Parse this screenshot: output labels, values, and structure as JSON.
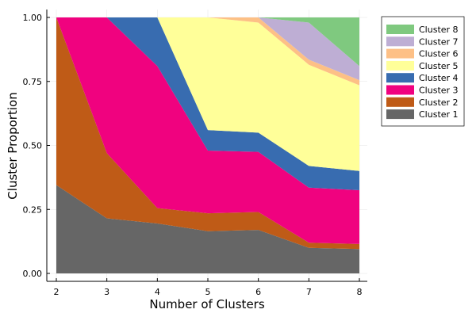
{
  "chart_data": {
    "type": "area",
    "stacked": true,
    "xlabel": "Number of Clusters",
    "ylabel": "Cluster Proportion",
    "x": [
      2,
      3,
      4,
      5,
      6,
      7,
      8
    ],
    "xlim": [
      2,
      8
    ],
    "ylim": [
      0,
      1
    ],
    "yticks": [
      "0.00",
      "0.25",
      "0.50",
      "0.75",
      "1.00"
    ],
    "xticks": [
      "2",
      "3",
      "4",
      "5",
      "6",
      "7",
      "8"
    ],
    "grid": true,
    "legend_position": "top-right",
    "series": [
      {
        "name": "Cluster 1",
        "color": "#666666",
        "values": [
          0.345,
          0.215,
          0.195,
          0.165,
          0.17,
          0.1,
          0.095
        ]
      },
      {
        "name": "Cluster 2",
        "color": "#bf5b17",
        "values": [
          0.655,
          0.255,
          0.06,
          0.07,
          0.07,
          0.02,
          0.02
        ]
      },
      {
        "name": "Cluster 3",
        "color": "#f0027f",
        "values": [
          0.0,
          0.53,
          0.555,
          0.245,
          0.235,
          0.215,
          0.21
        ]
      },
      {
        "name": "Cluster 4",
        "color": "#386cb0",
        "values": [
          0.0,
          0.0,
          0.19,
          0.08,
          0.075,
          0.085,
          0.075
        ]
      },
      {
        "name": "Cluster 5",
        "color": "#ffff99",
        "values": [
          0.0,
          0.0,
          0.0,
          0.44,
          0.43,
          0.395,
          0.335
        ]
      },
      {
        "name": "Cluster 6",
        "color": "#fdc086",
        "values": [
          0.0,
          0.0,
          0.0,
          0.0,
          0.02,
          0.02,
          0.02
        ]
      },
      {
        "name": "Cluster 7",
        "color": "#beaed4",
        "values": [
          0.0,
          0.0,
          0.0,
          0.0,
          0.0,
          0.145,
          0.055
        ]
      },
      {
        "name": "Cluster 8",
        "color": "#7fc97f",
        "values": [
          0.0,
          0.0,
          0.0,
          0.0,
          0.0,
          0.02,
          0.19
        ]
      }
    ]
  }
}
